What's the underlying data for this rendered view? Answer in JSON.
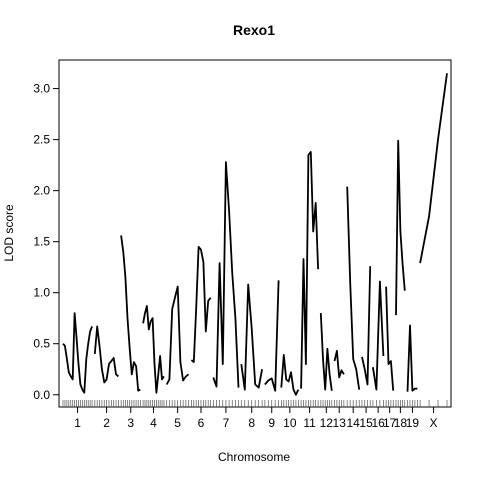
{
  "chart_data": {
    "type": "line",
    "title": "Rexo1",
    "xlabel": "Chromosome",
    "ylabel": "LOD score",
    "ylim": [
      -0.12,
      3.28
    ],
    "yticks": [
      0.0,
      0.5,
      1.0,
      1.5,
      2.0,
      2.5,
      3.0
    ],
    "ytick_labels": [
      "0.0",
      "0.5",
      "1.0",
      "1.5",
      "2.0",
      "2.5",
      "3.0"
    ],
    "grid": false,
    "line_color": "#000000",
    "chromosomes": [
      {
        "label": "1",
        "start": 0,
        "end": 53,
        "values": [
          0.5,
          0.48,
          0.35,
          0.22,
          0.18,
          0.15,
          0.8,
          0.55,
          0.3,
          0.1,
          0.05,
          0.02,
          0.35,
          0.5,
          0.62,
          0.67
        ]
      },
      {
        "label": "2",
        "start": 58,
        "end": 101,
        "values": [
          0.4,
          0.67,
          0.48,
          0.25,
          0.12,
          0.15,
          0.3,
          0.33,
          0.36,
          0.2,
          0.18
        ]
      },
      {
        "label": "3",
        "start": 106,
        "end": 141,
        "values": [
          1.56,
          1.4,
          1.15,
          0.75,
          0.45,
          0.2,
          0.32,
          0.28,
          0.04,
          0.05
        ]
      },
      {
        "label": "4",
        "start": 146,
        "end": 184,
        "values": [
          0.7,
          0.8,
          0.87,
          0.64,
          0.72,
          0.75,
          0.3,
          0.02,
          0.2,
          0.38,
          0.15,
          0.18
        ]
      },
      {
        "label": "5",
        "start": 189,
        "end": 229,
        "values": [
          0.1,
          0.15,
          0.84,
          0.95,
          1.06,
          0.32,
          0.14,
          0.18,
          0.2
        ]
      },
      {
        "label": "6",
        "start": 234,
        "end": 269,
        "values": [
          0.34,
          0.32,
          0.85,
          1.45,
          1.42,
          1.3,
          0.62,
          0.92,
          0.95
        ]
      },
      {
        "label": "7",
        "start": 274,
        "end": 320,
        "values": [
          0.17,
          0.08,
          1.29,
          0.3,
          2.28,
          1.8,
          1.2,
          0.75,
          0.07
        ]
      },
      {
        "label": "8",
        "start": 325,
        "end": 363,
        "values": [
          0.3,
          0.05,
          1.08,
          0.65,
          0.1,
          0.07,
          0.25
        ]
      },
      {
        "label": "9",
        "start": 368,
        "end": 393,
        "values": [
          0.1,
          0.14,
          0.16,
          0.04,
          1.12
        ]
      },
      {
        "label": "10",
        "start": 398,
        "end": 429,
        "values": [
          0.07,
          0.39,
          0.15,
          0.13,
          0.22,
          0.05,
          0.0,
          0.05
        ]
      },
      {
        "label": "11",
        "start": 434,
        "end": 465,
        "values": [
          0.06,
          1.33,
          0.3,
          2.35,
          2.38,
          1.6,
          1.88,
          1.23
        ]
      },
      {
        "label": "12",
        "start": 470,
        "end": 490,
        "values": [
          0.8,
          0.35,
          0.05,
          0.45,
          0.2,
          0.04
        ]
      },
      {
        "label": "13",
        "start": 495,
        "end": 512,
        "values": [
          0.33,
          0.43,
          0.17,
          0.24,
          0.2
        ]
      },
      {
        "label": "14",
        "start": 518,
        "end": 540,
        "values": [
          2.04,
          1.1,
          0.35,
          0.25,
          0.05
        ]
      },
      {
        "label": "15",
        "start": 545,
        "end": 560,
        "values": [
          0.37,
          0.25,
          0.1,
          1.26
        ]
      },
      {
        "label": "16",
        "start": 565,
        "end": 584,
        "values": [
          0.27,
          0.05,
          1.11,
          0.38
        ]
      },
      {
        "label": "17",
        "start": 589,
        "end": 602,
        "values": [
          1.06,
          0.3,
          0.33,
          0.04
        ]
      },
      {
        "label": "18",
        "start": 607,
        "end": 623,
        "values": [
          0.78,
          2.49,
          1.6,
          1.28,
          1.02
        ]
      },
      {
        "label": "19",
        "start": 628,
        "end": 646,
        "values": [
          0.03,
          0.68,
          0.04,
          0.06,
          0.06
        ]
      },
      {
        "label": "X",
        "start": 651,
        "end": 700,
        "values": [
          1.29,
          1.75,
          2.5,
          3.15
        ]
      }
    ]
  }
}
